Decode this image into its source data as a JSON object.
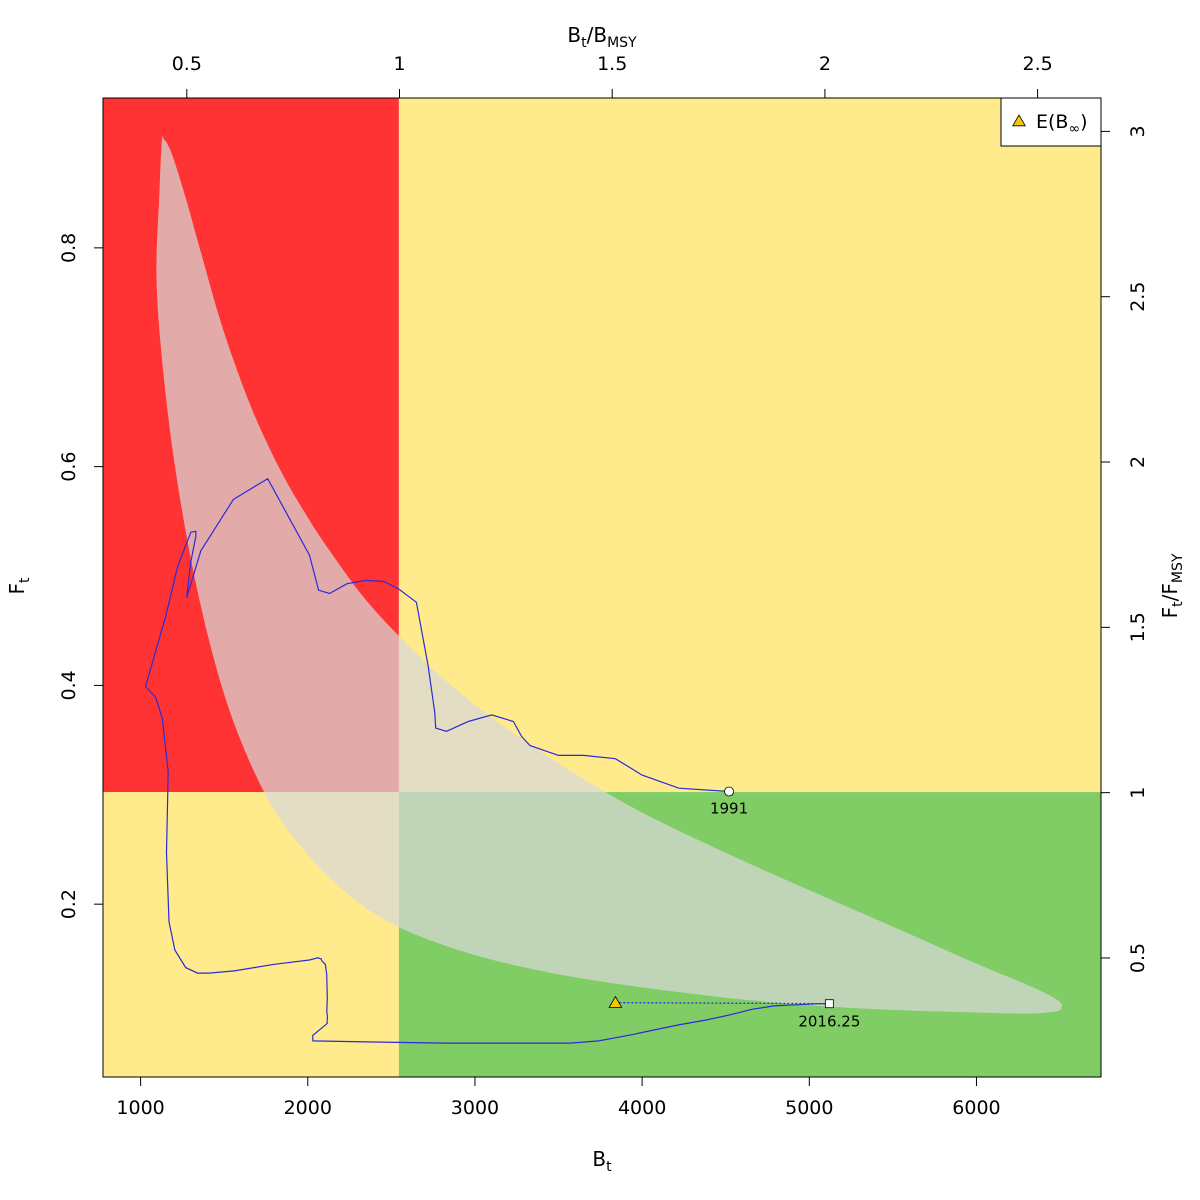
{
  "chart_data": {
    "type": "line",
    "title": "",
    "xlabel": {
      "base": "B",
      "sub": "t"
    },
    "ylabel": {
      "base": "F",
      "sub": "t"
    },
    "x2label": {
      "base": "B",
      "sub": "t",
      "slash": "/",
      "base2": "B",
      "sub2": "MSY"
    },
    "y2label": {
      "base": "F",
      "sub": "t",
      "slash": "/",
      "base2": "F",
      "sub2": "MSY"
    },
    "xlim": [
      775,
      6745
    ],
    "ylim": [
      0.042,
      0.937
    ],
    "x2lim": [
      0.303,
      2.649
    ],
    "y2lim": [
      0.14,
      3.101
    ],
    "grid": false,
    "reference_points": {
      "Bmsy": 2545,
      "Fmsy": 0.3025
    },
    "x_ticks": [
      "1000",
      "2000",
      "3000",
      "4000",
      "5000",
      "6000"
    ],
    "x_tick_values": [
      1000,
      2000,
      3000,
      4000,
      5000,
      6000
    ],
    "y_ticks": [
      "0.2",
      "0.4",
      "0.6",
      "0.8"
    ],
    "y_tick_values": [
      0.2,
      0.4,
      0.6,
      0.8
    ],
    "x2_ticks": [
      "0.5",
      "1",
      "1.5",
      "2",
      "2.5"
    ],
    "x2_tick_values": [
      0.5,
      1,
      1.5,
      2,
      2.5
    ],
    "y2_ticks": [
      "0.5",
      "1",
      "1.5",
      "2",
      "2.5",
      "3"
    ],
    "y2_tick_values": [
      0.5,
      1,
      1.5,
      2,
      2.5,
      3
    ],
    "zones": {
      "overfished_overfishing": "#ff3333",
      "overfishing_only": "#ffeb8c",
      "overfished_only": "#ffeb8c",
      "healthy": "#80cd66"
    },
    "ellipse_color": "#d8d8d8",
    "line_color": "#2b2bd9",
    "trajectory": {
      "x": [
        4520,
        4220,
        4000,
        3840,
        3650,
        3500,
        3330,
        3280,
        3230,
        3100,
        2960,
        2830,
        2765,
        2760,
        2720,
        2650,
        2545,
        2455,
        2345,
        2235,
        2130,
        2065,
        2010,
        1760,
        1555,
        1360,
        1275,
        1300,
        1330,
        1330,
        1300,
        1220,
        1150,
        1050,
        1030,
        1090,
        1130,
        1165,
        1155,
        1170,
        1205,
        1270,
        1340,
        1410,
        1560,
        1800,
        2010,
        2060,
        2080,
        2085,
        2105,
        2113,
        2117,
        2114,
        2118,
        2115,
        2117,
        2030,
        2030,
        2390,
        2820,
        3210,
        3440,
        3570,
        3740,
        3950,
        4070,
        4230,
        4380,
        4530,
        4660,
        4790,
        4920,
        5060,
        5120
      ],
      "y": [
        0.303,
        0.306,
        0.318,
        0.333,
        0.336,
        0.336,
        0.345,
        0.353,
        0.367,
        0.373,
        0.367,
        0.358,
        0.361,
        0.375,
        0.418,
        0.476,
        0.488,
        0.495,
        0.496,
        0.493,
        0.484,
        0.487,
        0.519,
        0.589,
        0.57,
        0.523,
        0.48,
        0.513,
        0.536,
        0.541,
        0.54,
        0.508,
        0.463,
        0.41,
        0.399,
        0.389,
        0.37,
        0.321,
        0.247,
        0.184,
        0.158,
        0.142,
        0.137,
        0.137,
        0.139,
        0.145,
        0.149,
        0.151,
        0.15,
        0.148,
        0.145,
        0.136,
        0.114,
        0.102,
        0.096,
        0.093,
        0.091,
        0.08,
        0.075,
        0.074,
        0.073,
        0.073,
        0.073,
        0.073,
        0.075,
        0.081,
        0.085,
        0.09,
        0.094,
        0.099,
        0.104,
        0.107,
        0.108,
        0.109,
        0.109
      ]
    },
    "ellipse": {
      "x": [
        1127,
        1140,
        1160,
        1196,
        1269,
        1364,
        1460,
        1554,
        1681,
        1842,
        2006,
        2132,
        2332,
        2540,
        2820,
        3160,
        3570,
        3997,
        4527,
        5056,
        5581,
        6009,
        6337,
        6487,
        6510,
        6474,
        6297,
        5997,
        5554,
        5052,
        4528,
        3997,
        3567,
        3160,
        2823,
        2532,
        2298,
        2085,
        1936,
        1780,
        1636,
        1508,
        1392,
        1290,
        1198,
        1130,
        1095,
        1113,
        1127
      ],
      "y": [
        0.898,
        0.899,
        0.895,
        0.882,
        0.846,
        0.794,
        0.742,
        0.698,
        0.647,
        0.595,
        0.552,
        0.523,
        0.481,
        0.446,
        0.405,
        0.364,
        0.322,
        0.284,
        0.245,
        0.209,
        0.174,
        0.145,
        0.124,
        0.112,
        0.106,
        0.102,
        0.1,
        0.101,
        0.103,
        0.107,
        0.114,
        0.124,
        0.134,
        0.147,
        0.162,
        0.18,
        0.202,
        0.231,
        0.257,
        0.291,
        0.336,
        0.388,
        0.452,
        0.524,
        0.608,
        0.695,
        0.773,
        0.852,
        0.898
      ]
    },
    "start_point": {
      "x": 4520,
      "y": 0.303,
      "label": "1991"
    },
    "end_point": {
      "x": 5120,
      "y": 0.109,
      "label": "2016.25"
    },
    "expected_point": {
      "x": 3840,
      "y": 0.11,
      "color": "#f2c800"
    },
    "legend": {
      "position": "top-right",
      "base": "E(B",
      "sub": "∞",
      "close": ")"
    }
  }
}
